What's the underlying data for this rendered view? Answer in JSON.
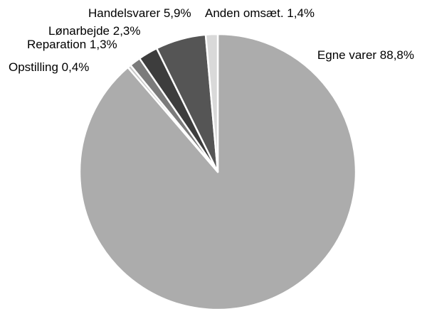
{
  "chart_data": {
    "type": "pie",
    "title": "",
    "start_angle_deg": 0,
    "direction": "clockwise",
    "slices": [
      {
        "label": "Egne varer",
        "value": 88.8,
        "value_label": "88,8%",
        "color": "#acacac"
      },
      {
        "label": "Opstilling",
        "value": 0.4,
        "value_label": "0,4%",
        "color": "#c8c8c8"
      },
      {
        "label": "Reparation",
        "value": 1.3,
        "value_label": "1,3%",
        "color": "#7b7b7b"
      },
      {
        "label": "Lønarbejde",
        "value": 2.3,
        "value_label": "2,3%",
        "color": "#3d3d3d"
      },
      {
        "label": "Handelsvarer",
        "value": 5.9,
        "value_label": "5,9%",
        "color": "#555555"
      },
      {
        "label": "Anden omsæt.",
        "value": 1.4,
        "value_label": "1,4%",
        "color": "#d9d9d9"
      }
    ],
    "legend": "none"
  }
}
